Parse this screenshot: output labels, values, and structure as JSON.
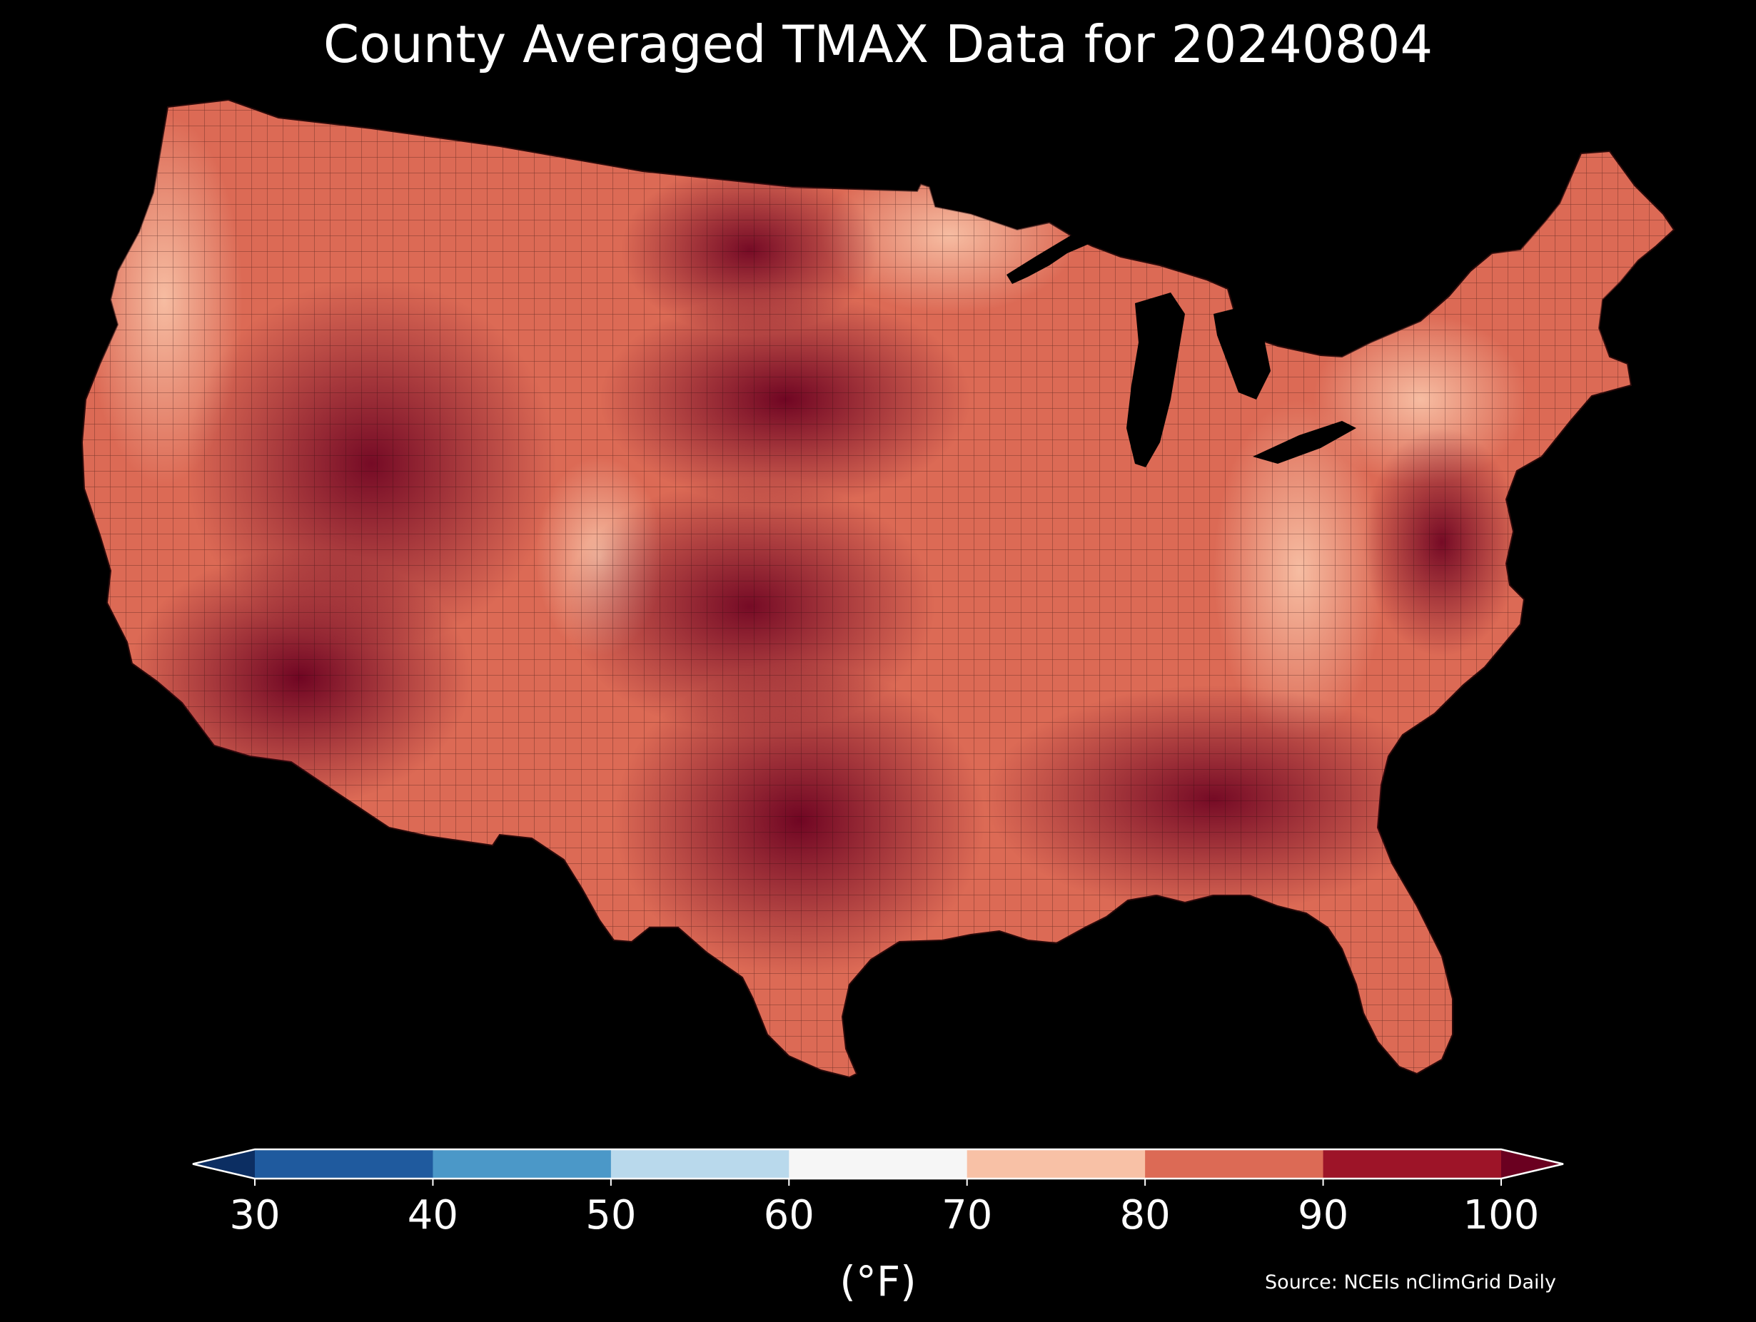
{
  "title": "County Averaged TMAX Data for 20240804",
  "source": "Source: NCEIs nClimGrid Daily",
  "colorbar": {
    "label": "(°F)",
    "ticks": [
      "30",
      "40",
      "50",
      "60",
      "70",
      "80",
      "90",
      "100"
    ],
    "bins": [
      {
        "min": 30,
        "max": 40,
        "color": "#1f5a9e"
      },
      {
        "min": 40,
        "max": 50,
        "color": "#4b98c8"
      },
      {
        "min": 50,
        "max": 60,
        "color": "#b9d9ec"
      },
      {
        "min": 60,
        "max": 70,
        "color": "#f6f6f6"
      },
      {
        "min": 70,
        "max": 80,
        "color": "#f8c1a6"
      },
      {
        "min": 80,
        "max": 90,
        "color": "#dc6a55"
      },
      {
        "min": 90,
        "max": 100,
        "color": "#9d1428"
      }
    ],
    "under_color": "#0c2e62",
    "over_color": "#6a0020",
    "extend": "both"
  },
  "map": {
    "region": "Contiguous United States",
    "background": "#000000",
    "county_border_color": "#2a0a0a"
  }
}
